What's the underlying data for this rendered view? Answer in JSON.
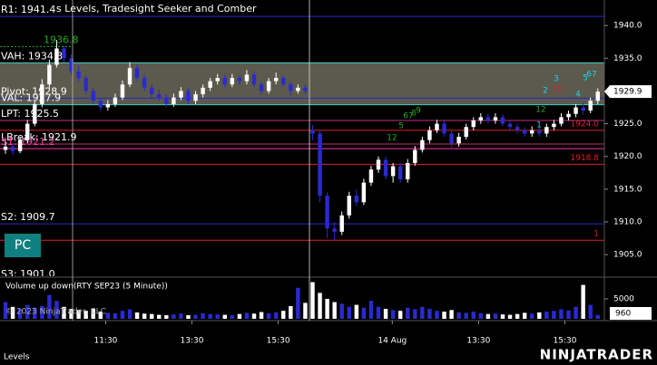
{
  "chart_data": [
    {
      "type": "candlestick",
      "title": "s Levels, Tradesight Seeker and Comber",
      "open": [
        1921,
        1921.5,
        1920.8,
        1922.5,
        1925,
        1928,
        1931,
        1934,
        1936.5,
        1935,
        1933,
        1932,
        1930,
        1928.5,
        1927.5,
        1928,
        1929,
        1931,
        1933.5,
        1932,
        1930.5,
        1929.5,
        1929,
        1928,
        1929,
        1930,
        1928.5,
        1929.5,
        1930.5,
        1931.5,
        1932,
        1931,
        1932,
        1931.5,
        1932.5,
        1931,
        1930,
        1931.5,
        1932,
        1931,
        1930,
        1930.5,
        1924,
        1923.5,
        1914,
        1909,
        1908.5,
        1911,
        1914,
        1913,
        1916,
        1918,
        1919.5,
        1917,
        1918.5,
        1916.5,
        1919,
        1921,
        1922.5,
        1924,
        1925,
        1923.5,
        1922,
        1923,
        1924.5,
        1925.5,
        1926,
        1925.5,
        1926,
        1925,
        1924.5,
        1924,
        1923.5,
        1924,
        1923.5,
        1924.5,
        1925,
        1926,
        1926.5,
        1927.5,
        1927,
        1928.5
      ],
      "high": [
        1922.3,
        1922,
        1923,
        1925.6,
        1928.5,
        1931.8,
        1934.8,
        1937.8,
        1937,
        1935.6,
        1933.8,
        1932.4,
        1930.5,
        1929,
        1928.6,
        1929.6,
        1931.6,
        1934.4,
        1934,
        1932.5,
        1931,
        1930.2,
        1929.5,
        1929.6,
        1930.6,
        1930.4,
        1930,
        1931,
        1932,
        1932.6,
        1932.5,
        1932.6,
        1932.4,
        1933.2,
        1933,
        1931.5,
        1932,
        1932.8,
        1932.4,
        1931.4,
        1931,
        1931,
        1924.8,
        1924,
        1914.5,
        1910,
        1911.6,
        1914.6,
        1915,
        1916.6,
        1918.6,
        1920,
        1920,
        1919,
        1919,
        1919.6,
        1921.6,
        1923,
        1924.6,
        1925.6,
        1925.4,
        1924,
        1923.6,
        1925,
        1926,
        1926.6,
        1926.5,
        1926.6,
        1926.4,
        1925.4,
        1925,
        1924.5,
        1924.6,
        1924.5,
        1925,
        1925.6,
        1926.6,
        1927,
        1928,
        1928.2,
        1929,
        1930.4
      ],
      "low": [
        1920.4,
        1920.2,
        1920.5,
        1922,
        1924.6,
        1927.5,
        1930.5,
        1933.6,
        1934.4,
        1932.5,
        1931.4,
        1929.5,
        1928,
        1926.9,
        1927,
        1927.6,
        1928.6,
        1930.6,
        1931.5,
        1930,
        1929,
        1928.5,
        1927.5,
        1927.6,
        1928.6,
        1928,
        1928,
        1929,
        1930,
        1931,
        1930.6,
        1930.6,
        1931,
        1931,
        1930.6,
        1929.5,
        1929.6,
        1931,
        1930.6,
        1929.3,
        1929.6,
        1929.5,
        1922.5,
        1913,
        1907.5,
        1907.2,
        1908,
        1910.5,
        1912.4,
        1912.6,
        1915.5,
        1917.5,
        1916.5,
        1916,
        1916,
        1916,
        1918.6,
        1920.6,
        1922,
        1923.6,
        1923,
        1921.4,
        1921.5,
        1922.6,
        1924,
        1925,
        1925,
        1925,
        1924.6,
        1924,
        1923.5,
        1923,
        1923,
        1923,
        1923,
        1924,
        1924.6,
        1925.5,
        1926,
        1926.4,
        1926.6,
        1928
      ],
      "close": [
        1921.5,
        1920.8,
        1922.5,
        1925,
        1928,
        1931,
        1934,
        1936.5,
        1935,
        1933,
        1932,
        1930,
        1928.5,
        1927.5,
        1928,
        1929,
        1931,
        1933.5,
        1932,
        1930.5,
        1929.5,
        1929,
        1928,
        1929,
        1930,
        1928.5,
        1929.5,
        1930.5,
        1931.5,
        1932,
        1931,
        1932,
        1931.5,
        1932.5,
        1931,
        1930,
        1931.5,
        1932,
        1931,
        1930,
        1930.5,
        1930,
        1923.5,
        1914,
        1909,
        1908.5,
        1911,
        1914,
        1913,
        1916,
        1918,
        1919.5,
        1917,
        1918.5,
        1916.5,
        1919,
        1921,
        1922.5,
        1924,
        1925,
        1923.5,
        1922,
        1923,
        1924.5,
        1925.5,
        1926,
        1925.5,
        1926,
        1925,
        1924.5,
        1924,
        1923.5,
        1924,
        1923.5,
        1924.5,
        1925,
        1926,
        1926.5,
        1927.5,
        1927,
        1928.5,
        1929.9
      ],
      "up_color": "#ffffff",
      "down_color": "#2a2ad0",
      "xlim": [
        -0.75,
        81.9
      ],
      "xticks": [
        {
          "value": 13.7,
          "label": "11:30"
        },
        {
          "value": 25.5,
          "label": "13:30"
        },
        {
          "value": 37.3,
          "label": "15:30"
        },
        {
          "value": 52.9,
          "label": "14 Aug"
        },
        {
          "value": 64.7,
          "label": "13:30"
        },
        {
          "value": 76.5,
          "label": "15:30"
        }
      ],
      "ylim": [
        1901.7,
        1943.9
      ],
      "yticks": [
        {
          "value": 1905,
          "label": "1905.0"
        },
        {
          "value": 1910,
          "label": "1910.0"
        },
        {
          "value": 1915,
          "label": "1915.0"
        },
        {
          "value": 1920,
          "label": "1920.0"
        },
        {
          "value": 1925,
          "label": "1925.0"
        },
        {
          "value": 1930,
          "label": "1930.0"
        },
        {
          "value": 1935,
          "label": "1935.0"
        },
        {
          "value": 1940,
          "label": "1940.0"
        }
      ],
      "shade_color": "#5b5a4c",
      "levels": [
        {
          "label": "R1: 1941.4",
          "value": 1941.4,
          "color": "#2828c8",
          "text_color": "#ffffff",
          "side": "left"
        },
        {
          "label": "1936.8",
          "value": 1936.8,
          "color": "#22aa22",
          "text_color": "#22aa22",
          "side": "left",
          "dash": true
        },
        {
          "label": "VAH: 1934.3",
          "value": 1934.3,
          "color": "#3fd0c8",
          "text_color": "#ffffff",
          "side": "left"
        },
        {
          "label": "Pivot: 1928.9",
          "value": 1928.9,
          "color": "#2828c8",
          "text_color": "#ffffff",
          "side": "left"
        },
        {
          "label": "VAL: 1927.9",
          "value": 1927.9,
          "color": "#3fd0c8",
          "text_color": "#ffffff",
          "side": "left"
        },
        {
          "label": "LPT: 1925.5",
          "value": 1925.5,
          "color": "#c0308a",
          "text_color": "#ffffff",
          "side": "left"
        },
        {
          "label": "1924.0",
          "value": 1924.0,
          "color": "#e0202a",
          "text_color": "#e0202a",
          "side": "right"
        },
        {
          "label": "LBreak: 1921.9",
          "value": 1921.9,
          "color": "#c0306a",
          "text_color": "#ffffff",
          "side": "left"
        },
        {
          "label": "S1: 1921.2",
          "value": 1921.2,
          "color": "#ff33aa",
          "text_color": "#ff33aa",
          "side": "left"
        },
        {
          "label": "1918.8",
          "value": 1918.8,
          "color": "#e0202a",
          "text_color": "#e0202a",
          "side": "right"
        },
        {
          "label": "S2: 1909.7",
          "value": 1909.7,
          "color": "#2828c8",
          "text_color": "#ffffff",
          "side": "left"
        },
        {
          "label": "1",
          "value": 1907.2,
          "color": "#e0202a",
          "text_color": "#e0202a",
          "side": "right"
        },
        {
          "label": "S3: 1901.0",
          "value": 1901.0,
          "color": "#2828c8",
          "text_color": "#ffffff",
          "side": "left"
        }
      ],
      "annotations": [
        {
          "text": "12",
          "color": "#22aa22"
        },
        {
          "text": "5",
          "color": "#22aa22"
        },
        {
          "text": "67",
          "color": "#22aa22"
        },
        {
          "text": "8",
          "color": "#22aa22"
        },
        {
          "text": "9",
          "color": "#22aa22"
        },
        {
          "text": "1",
          "color": "#22d3ee"
        },
        {
          "text": "12",
          "color": "#22aa22"
        },
        {
          "text": "2",
          "color": "#22d3ee"
        },
        {
          "text": "(1)",
          "color": "#e0202a"
        },
        {
          "text": "3",
          "color": "#22d3ee"
        },
        {
          "text": "4",
          "color": "#22d3ee"
        },
        {
          "text": "5",
          "color": "#22d3ee"
        },
        {
          "text": "67",
          "color": "#22d3ee"
        }
      ],
      "button": "PC",
      "footer": "Levels",
      "logo": "NINJATRADER"
    },
    {
      "type": "bar",
      "title": "Volume up down(RTY SEP23 (5 Minute))",
      "copyright": "© 2023 NinjaTrader, LLC",
      "values": [
        4200,
        3000,
        2500,
        3500,
        2800,
        3200,
        6000,
        4500,
        3000,
        2500,
        2200,
        2000,
        2600,
        1800,
        1500,
        1400,
        2000,
        2400,
        1600,
        1300,
        1200,
        1000,
        900,
        1100,
        1300,
        900,
        1000,
        1400,
        1200,
        1100,
        1000,
        900,
        1200,
        1500,
        1300,
        1700,
        1400,
        1600,
        2000,
        3200,
        7800,
        4000,
        9200,
        6500,
        5000,
        4200,
        3800,
        3000,
        3500,
        2800,
        4500,
        3000,
        2500,
        2200,
        2000,
        2800,
        2400,
        3000,
        2500,
        2000,
        1800,
        2200,
        1600,
        1500,
        1800,
        1400,
        1200,
        1300,
        1100,
        1000,
        1200,
        1500,
        1300,
        1600,
        1800,
        2000,
        2400,
        2100,
        3000,
        8500,
        3500,
        960
      ],
      "ylim": [
        0,
        10000
      ],
      "yticks": [
        5000
      ]
    }
  ]
}
